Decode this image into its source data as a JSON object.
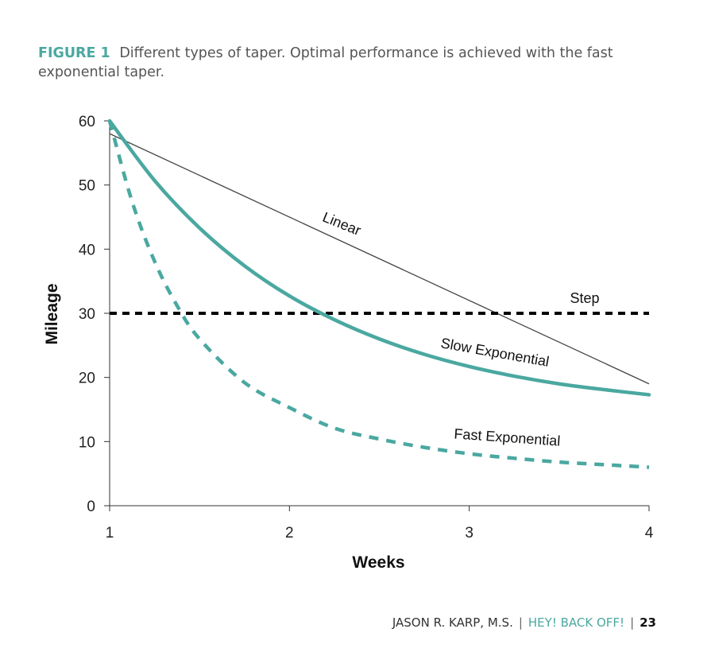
{
  "caption": {
    "label": "FIGURE 1",
    "text": "Different types of taper. Optimal performance is achieved with the fast exponential taper."
  },
  "footer": {
    "author": "JASON R. KARP, M.S.",
    "separator": "|",
    "book_title": "HEY! BACK OFF!",
    "page_number": "23"
  },
  "chart_data": {
    "type": "line",
    "xlabel": "Weeks",
    "ylabel": "Mileage",
    "xlim": [
      1,
      4
    ],
    "ylim": [
      0,
      60
    ],
    "x_ticks": [
      "1",
      "2",
      "3",
      "4"
    ],
    "y_ticks": [
      "0",
      "10",
      "20",
      "30",
      "40",
      "50",
      "60"
    ],
    "grid": false,
    "colors": {
      "teal": "#4aa8a0",
      "black": "#000000",
      "linear": "#444444"
    },
    "series": [
      {
        "name": "Linear",
        "style": "thin-solid",
        "color": "#444444",
        "x": [
          1,
          4
        ],
        "y": [
          58,
          19
        ]
      },
      {
        "name": "Step",
        "style": "dashed",
        "color": "#000000",
        "x": [
          1,
          4
        ],
        "y": [
          30,
          30
        ]
      },
      {
        "name": "Slow Exponential",
        "style": "thick-solid",
        "color": "#4aa8a0",
        "x": [
          1,
          1.25,
          1.5,
          1.75,
          2,
          2.25,
          2.5,
          2.75,
          3,
          3.25,
          3.5,
          3.75,
          4
        ],
        "y": [
          60,
          50.7,
          43.3,
          37.4,
          32.7,
          29.0,
          26.0,
          23.6,
          21.7,
          20.2,
          19.0,
          18.1,
          17.3
        ]
      },
      {
        "name": "Fast Exponential",
        "style": "thick-dashed",
        "color": "#4aa8a0",
        "x": [
          1,
          1.125,
          1.25,
          1.375,
          1.5,
          1.75,
          2,
          2.25,
          2.5,
          2.75,
          3,
          3.25,
          3.5,
          3.75,
          4
        ],
        "y": [
          60,
          47.4,
          38.1,
          31.2,
          26.0,
          19.2,
          15.3,
          12.1,
          10.4,
          9.1,
          8.1,
          7.4,
          6.8,
          6.4,
          6.0
        ]
      }
    ]
  }
}
